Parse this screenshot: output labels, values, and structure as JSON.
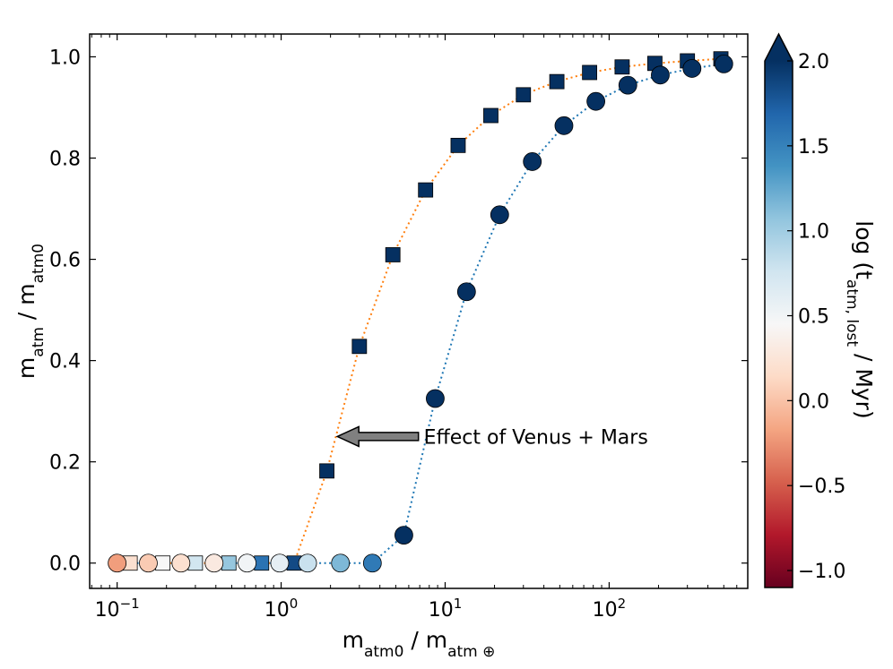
{
  "chart_data": {
    "type": "scatter",
    "xscale": "log",
    "xlabel": "m_atm0 / m_atm⊕",
    "ylabel": "m_atm / m_atm0",
    "xlim": [
      0.068,
      700
    ],
    "ylim": [
      -0.05,
      1.045
    ],
    "xticks": [
      {
        "value": 0.1,
        "base": "10",
        "exp": "−1"
      },
      {
        "value": 1,
        "base": "10",
        "exp": "0"
      },
      {
        "value": 10,
        "base": "10",
        "exp": "1"
      },
      {
        "value": 100,
        "base": "10",
        "exp": "2"
      }
    ],
    "yticks": [
      "0.0",
      "0.2",
      "0.4",
      "0.6",
      "0.8",
      "1.0"
    ],
    "colorbar": {
      "label": "log (t_atm, lost / Myr)",
      "range": [
        -1.1,
        2.0
      ],
      "ticks": [
        "−1.0",
        "−0.5",
        "0.0",
        "0.5",
        "1.0",
        "1.5",
        "2.0"
      ],
      "extend": "max",
      "colormap": [
        "#67001f",
        "#b2182b",
        "#d6604d",
        "#f4a582",
        "#fddbc7",
        "#f7f7f7",
        "#d1e5f0",
        "#92c5de",
        "#4393c3",
        "#2166ac",
        "#053061"
      ]
    },
    "series": [
      {
        "marker": "square",
        "line_color": "#ff7f0e",
        "points": [
          {
            "x": 0.12,
            "y": 0.0,
            "c": 0.2
          },
          {
            "x": 0.19,
            "y": 0.0,
            "c": 0.45
          },
          {
            "x": 0.3,
            "y": 0.0,
            "c": 0.75
          },
          {
            "x": 0.48,
            "y": 0.0,
            "c": 1.05
          },
          {
            "x": 0.76,
            "y": 0.0,
            "c": 1.6
          },
          {
            "x": 1.2,
            "y": 0.0,
            "c": 1.85
          },
          {
            "x": 1.9,
            "y": 0.182,
            "c": 2.0
          },
          {
            "x": 3.0,
            "y": 0.428,
            "c": 2.0
          },
          {
            "x": 4.8,
            "y": 0.609,
            "c": 2.0
          },
          {
            "x": 7.6,
            "y": 0.737,
            "c": 2.0
          },
          {
            "x": 12.0,
            "y": 0.825,
            "c": 2.0
          },
          {
            "x": 19.0,
            "y": 0.884,
            "c": 2.0
          },
          {
            "x": 30.0,
            "y": 0.925,
            "c": 2.0
          },
          {
            "x": 48.0,
            "y": 0.951,
            "c": 2.0
          },
          {
            "x": 76.0,
            "y": 0.969,
            "c": 2.0
          },
          {
            "x": 120.0,
            "y": 0.98,
            "c": 2.0
          },
          {
            "x": 190.0,
            "y": 0.987,
            "c": 2.0
          },
          {
            "x": 300.0,
            "y": 0.992,
            "c": 2.0
          },
          {
            "x": 480.0,
            "y": 0.996,
            "c": 2.0
          }
        ]
      },
      {
        "marker": "circle",
        "line_color": "#1f77b4",
        "points": [
          {
            "x": 0.1,
            "y": 0.0,
            "c": -0.2
          },
          {
            "x": 0.155,
            "y": 0.0,
            "c": 0.05
          },
          {
            "x": 0.245,
            "y": 0.0,
            "c": 0.2
          },
          {
            "x": 0.39,
            "y": 0.0,
            "c": 0.3
          },
          {
            "x": 0.62,
            "y": 0.0,
            "c": 0.5
          },
          {
            "x": 0.98,
            "y": 0.0,
            "c": 0.6
          },
          {
            "x": 1.45,
            "y": 0.0,
            "c": 0.8
          },
          {
            "x": 2.3,
            "y": 0.0,
            "c": 1.15
          },
          {
            "x": 3.6,
            "y": 0.0,
            "c": 1.55
          },
          {
            "x": 5.6,
            "y": 0.055,
            "c": 2.0
          },
          {
            "x": 8.7,
            "y": 0.325,
            "c": 2.0
          },
          {
            "x": 13.5,
            "y": 0.536,
            "c": 2.0
          },
          {
            "x": 21.5,
            "y": 0.688,
            "c": 2.0
          },
          {
            "x": 34.0,
            "y": 0.793,
            "c": 2.0
          },
          {
            "x": 53.0,
            "y": 0.864,
            "c": 2.0
          },
          {
            "x": 83.0,
            "y": 0.912,
            "c": 2.0
          },
          {
            "x": 130.0,
            "y": 0.944,
            "c": 2.0
          },
          {
            "x": 205.0,
            "y": 0.964,
            "c": 2.0
          },
          {
            "x": 320.0,
            "y": 0.977,
            "c": 2.0
          },
          {
            "x": 500.0,
            "y": 0.986,
            "c": 2.0
          }
        ]
      }
    ],
    "annotation": {
      "text": "Effect of Venus + Mars",
      "arrow_from": {
        "x": 7.6,
        "y": 0.25
      },
      "arrow_to": {
        "x": 2.2,
        "y": 0.25
      }
    }
  }
}
